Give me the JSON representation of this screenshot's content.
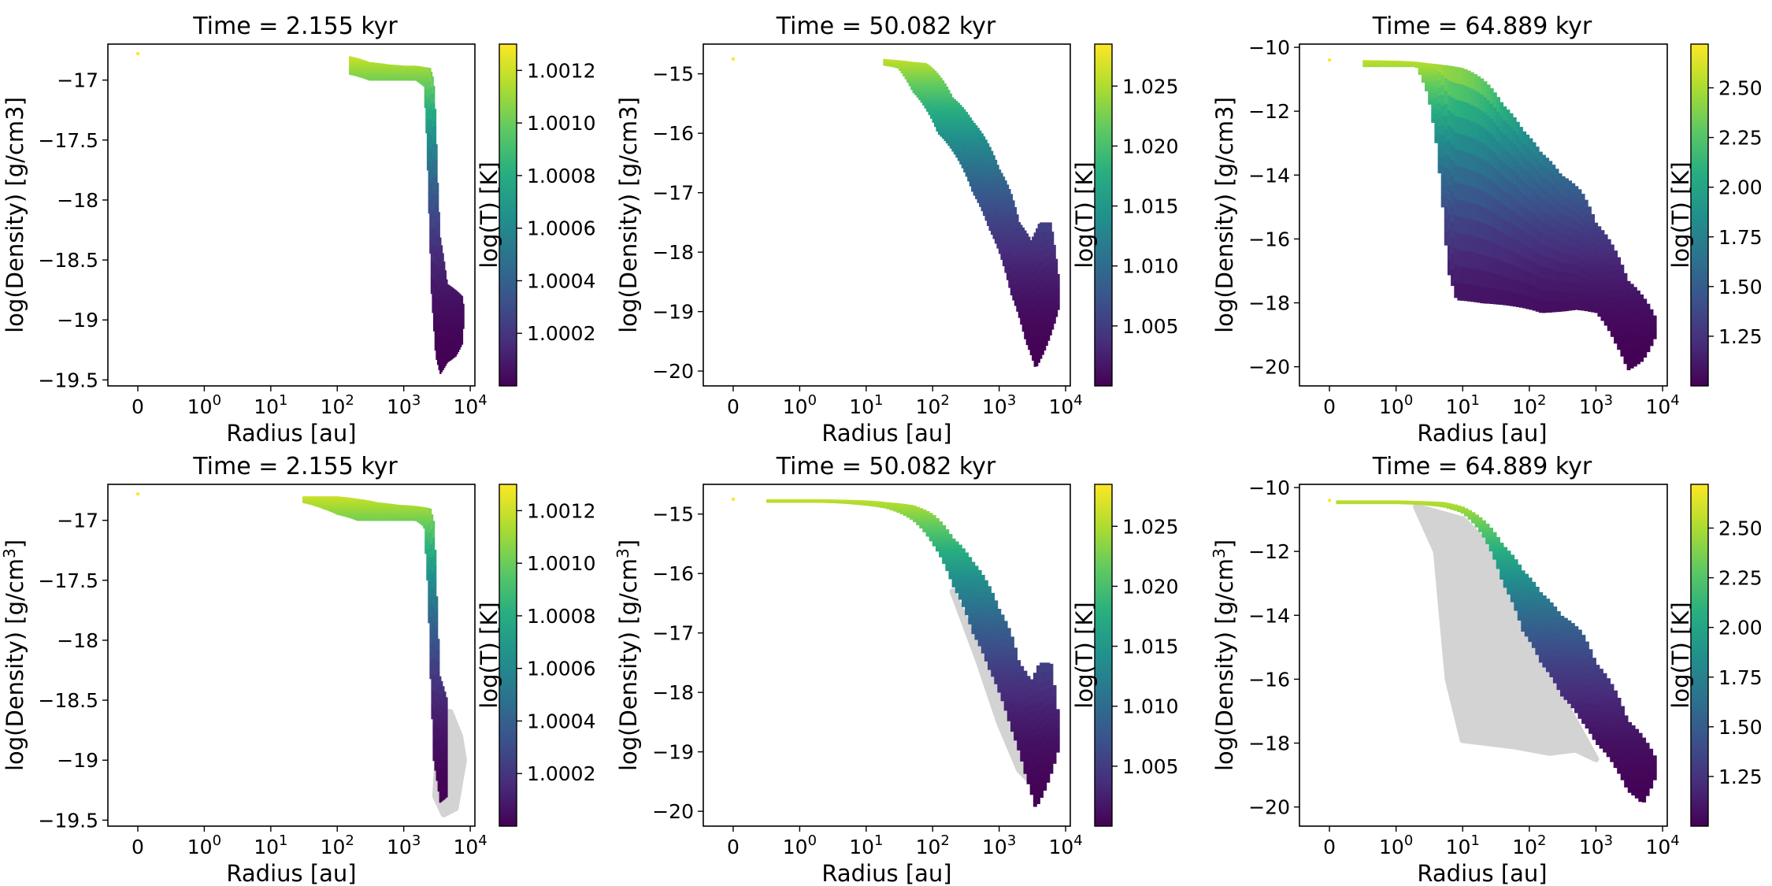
{
  "chart_data": [
    {
      "type": "scatter",
      "title": "Time = 2.155 kyr",
      "xlabel": "Radius [au]",
      "ylabel": "log(Density) [g/cm3]",
      "ylabel_html": null,
      "colorbar_label": "log(T) [K]",
      "xscale": "symlog",
      "xticks": [
        "0",
        "10^0",
        "10^1",
        "10^2",
        "10^3",
        "10^4"
      ],
      "ylim": [
        -19.55,
        -16.7
      ],
      "yticks": [
        -17.0,
        -17.5,
        -18.0,
        -18.5,
        -19.0,
        -19.5
      ],
      "clim": [
        1.0,
        1.0013
      ],
      "cticks": [
        1.0012,
        1.001,
        1.0008,
        1.0006,
        1.0004,
        1.0002
      ],
      "cticks_label": [
        "1.0012",
        "1.0010",
        "1.0008",
        "1.0006",
        "1.0004",
        "1.0002"
      ],
      "background_series": false,
      "series": [
        {
          "name": "center point",
          "x": [
            0
          ],
          "y": [
            -16.78
          ],
          "c": [
            1.00128
          ]
        },
        {
          "name": "upper envelope",
          "x": [
            150,
            300,
            600,
            1000,
            1500,
            2000,
            2500,
            2800,
            3000,
            3200,
            3500,
            4500,
            6000,
            7500,
            8000
          ],
          "y": [
            -16.8,
            -16.85,
            -16.87,
            -16.88,
            -16.88,
            -16.89,
            -16.9,
            -17.0,
            -17.3,
            -17.8,
            -18.3,
            -18.7,
            -18.75,
            -18.8,
            -18.9
          ]
        },
        {
          "name": "lower envelope",
          "x": [
            150,
            300,
            600,
            1000,
            1500,
            2000,
            2200,
            2400,
            2600,
            3000,
            3500,
            4500,
            6000,
            7500,
            8000
          ],
          "y": [
            -16.95,
            -17.0,
            -17.0,
            -17.0,
            -17.0,
            -17.05,
            -17.5,
            -18.2,
            -18.8,
            -19.3,
            -19.45,
            -19.35,
            -19.3,
            -19.2,
            -19.0
          ]
        }
      ]
    },
    {
      "type": "scatter",
      "title": "Time = 50.082 kyr",
      "xlabel": "Radius [au]",
      "ylabel": "log(Density) [g/cm3]",
      "colorbar_label": "log(T) [K]",
      "xscale": "symlog",
      "xticks": [
        "0",
        "10^0",
        "10^1",
        "10^2",
        "10^3",
        "10^4"
      ],
      "ylim": [
        -20.25,
        -14.5
      ],
      "yticks": [
        -15,
        -16,
        -17,
        -18,
        -19,
        -20
      ],
      "clim": [
        1.0,
        1.0285
      ],
      "cticks": [
        1.025,
        1.02,
        1.015,
        1.01,
        1.005
      ],
      "cticks_label": [
        "1.025",
        "1.020",
        "1.015",
        "1.010",
        "1.005"
      ],
      "background_series": false,
      "series": [
        {
          "name": "center point",
          "x": [
            0
          ],
          "y": [
            -14.75
          ],
          "c": [
            1.028
          ]
        },
        {
          "name": "upper envelope",
          "x": [
            18,
            30,
            50,
            80,
            120,
            200,
            400,
            700,
            1000,
            1500,
            2000,
            3000,
            4000,
            6000,
            8000
          ],
          "y": [
            -14.75,
            -14.77,
            -14.8,
            -14.82,
            -15.0,
            -15.4,
            -15.8,
            -16.2,
            -16.6,
            -17.0,
            -17.5,
            -17.8,
            -17.5,
            -17.5,
            -18.5
          ]
        },
        {
          "name": "lower envelope",
          "x": [
            18,
            30,
            50,
            80,
            120,
            200,
            400,
            700,
            1000,
            1500,
            2000,
            2500,
            3500,
            5000,
            8000
          ],
          "y": [
            -14.85,
            -14.9,
            -15.3,
            -15.6,
            -16.0,
            -16.3,
            -17.0,
            -17.6,
            -18.0,
            -18.7,
            -19.1,
            -19.5,
            -19.95,
            -19.6,
            -18.9
          ]
        }
      ]
    },
    {
      "type": "scatter",
      "title": "Time = 64.889 kyr",
      "xlabel": "Radius [au]",
      "ylabel": "log(Density) [g/cm3]",
      "colorbar_label": "log(T) [K]",
      "xscale": "symlog",
      "xticks": [
        "0",
        "10^0",
        "10^1",
        "10^2",
        "10^3",
        "10^4"
      ],
      "ylim": [
        -20.6,
        -9.9
      ],
      "yticks": [
        -10,
        -12,
        -14,
        -16,
        -18,
        -20
      ],
      "clim": [
        1.0,
        2.72
      ],
      "cticks": [
        2.5,
        2.25,
        2.0,
        1.75,
        1.5,
        1.25
      ],
      "cticks_label": [
        "2.50",
        "2.25",
        "2.00",
        "1.75",
        "1.50",
        "1.25"
      ],
      "background_series": false,
      "series": [
        {
          "name": "center point",
          "x": [
            0
          ],
          "y": [
            -10.4
          ],
          "c": [
            2.7
          ]
        },
        {
          "name": "upper envelope",
          "x": [
            0.5,
            1,
            2,
            3,
            5,
            10,
            20,
            40,
            80,
            150,
            300,
            600,
            1000,
            3000,
            8000
          ],
          "y": [
            -10.4,
            -10.42,
            -10.45,
            -10.5,
            -10.55,
            -10.65,
            -11.0,
            -11.8,
            -12.6,
            -13.3,
            -14.0,
            -14.5,
            -15.5,
            -17.3,
            -18.5
          ]
        },
        {
          "name": "lower envelope",
          "x": [
            2,
            3,
            4,
            5,
            6,
            8,
            20,
            60,
            150,
            500,
            1000,
            2000,
            3000,
            5000,
            8000
          ],
          "y": [
            -10.6,
            -11.5,
            -13.0,
            -15.0,
            -17.0,
            -17.9,
            -18.0,
            -18.1,
            -18.3,
            -18.2,
            -18.3,
            -19.3,
            -20.1,
            -19.8,
            -19.0
          ]
        }
      ]
    },
    {
      "type": "scatter",
      "title": "Time = 2.155 kyr",
      "xlabel": "Radius [au]",
      "ylabel": "log(Density) [g/cm",
      "ylabel_sup": "3",
      "ylabel_end": "]",
      "colorbar_label": "log(T) [K]",
      "xscale": "symlog",
      "xticks": [
        "0",
        "10^0",
        "10^1",
        "10^2",
        "10^3",
        "10^4"
      ],
      "ylim": [
        -19.55,
        -16.7
      ],
      "yticks": [
        -17.0,
        -17.5,
        -18.0,
        -18.5,
        -19.0,
        -19.5
      ],
      "clim": [
        1.0,
        1.0013
      ],
      "cticks": [
        1.0012,
        1.001,
        1.0008,
        1.0006,
        1.0004,
        1.0002
      ],
      "cticks_label": [
        "1.0012",
        "1.0010",
        "1.0008",
        "1.0006",
        "1.0004",
        "1.0002"
      ],
      "background_series": true,
      "series": [
        {
          "name": "center point",
          "x": [
            0
          ],
          "y": [
            -16.78
          ],
          "c": [
            1.00128
          ]
        },
        {
          "name": "upper envelope",
          "x": [
            30,
            60,
            100,
            200,
            400,
            800,
            1500,
            2500,
            2800,
            3000,
            3200,
            3500,
            4500
          ],
          "y": [
            -16.8,
            -16.8,
            -16.8,
            -16.82,
            -16.85,
            -16.87,
            -16.88,
            -16.9,
            -17.0,
            -17.3,
            -17.8,
            -18.3,
            -18.5
          ]
        },
        {
          "name": "lower envelope",
          "x": [
            30,
            60,
            100,
            200,
            400,
            800,
            1500,
            2000,
            2300,
            2500,
            2800,
            3500,
            4500
          ],
          "y": [
            -16.85,
            -16.9,
            -16.95,
            -17.0,
            -17.0,
            -17.0,
            -17.0,
            -17.05,
            -17.6,
            -18.3,
            -19.0,
            -19.35,
            -19.3
          ]
        },
        {
          "name": "background (grey)",
          "x": [
            3500,
            5000,
            7000,
            8000,
            6000,
            4000,
            3000
          ],
          "y": [
            -18.6,
            -18.6,
            -18.8,
            -19.0,
            -19.4,
            -19.45,
            -19.3
          ]
        }
      ]
    },
    {
      "type": "scatter",
      "title": "Time = 50.082 kyr",
      "xlabel": "Radius [au]",
      "ylabel": "log(Density) [g/cm",
      "ylabel_sup": "3",
      "ylabel_end": "]",
      "colorbar_label": "log(T) [K]",
      "xscale": "symlog",
      "xticks": [
        "0",
        "10^0",
        "10^1",
        "10^2",
        "10^3",
        "10^4"
      ],
      "ylim": [
        -20.25,
        -14.5
      ],
      "yticks": [
        -15,
        -16,
        -17,
        -18,
        -19,
        -20
      ],
      "clim": [
        1.0,
        1.0285
      ],
      "cticks": [
        1.025,
        1.02,
        1.015,
        1.01,
        1.005
      ],
      "cticks_label": [
        "1.025",
        "1.020",
        "1.015",
        "1.010",
        "1.005"
      ],
      "background_series": true,
      "series": [
        {
          "name": "center point",
          "x": [
            0
          ],
          "y": [
            -14.75
          ],
          "c": [
            1.028
          ]
        },
        {
          "name": "upper envelope",
          "x": [
            0.5,
            1,
            2,
            5,
            10,
            20,
            50,
            100,
            200,
            400,
            700,
            1000,
            1500,
            2000,
            3000,
            4000,
            6000,
            8000
          ],
          "y": [
            -14.75,
            -14.75,
            -14.75,
            -14.76,
            -14.77,
            -14.8,
            -14.85,
            -15.0,
            -15.4,
            -15.8,
            -16.2,
            -16.6,
            -17.0,
            -17.5,
            -17.8,
            -17.5,
            -17.5,
            -18.5
          ]
        },
        {
          "name": "lower envelope",
          "x": [
            0.5,
            1,
            2,
            5,
            10,
            20,
            50,
            100,
            200,
            400,
            700,
            1000,
            1500,
            2000,
            2500,
            3500,
            5000,
            8000
          ],
          "y": [
            -14.8,
            -14.8,
            -14.8,
            -14.82,
            -14.85,
            -14.9,
            -15.1,
            -15.5,
            -16.2,
            -17.0,
            -17.6,
            -18.0,
            -18.6,
            -19.0,
            -19.4,
            -19.95,
            -19.6,
            -18.9
          ]
        },
        {
          "name": "background (grey)",
          "x": [
            200,
            500,
            1000,
            2000,
            3000,
            2000,
            1000,
            500
          ],
          "y": [
            -16.3,
            -17.3,
            -18.0,
            -19.0,
            -19.5,
            -19.3,
            -18.5,
            -17.5
          ]
        }
      ]
    },
    {
      "type": "scatter",
      "title": "Time = 64.889 kyr",
      "xlabel": "Radius [au]",
      "ylabel": "log(Density) [g/cm",
      "ylabel_sup": "3",
      "ylabel_end": "]",
      "colorbar_label": "log(T) [K]",
      "xscale": "symlog",
      "xticks": [
        "0",
        "10^0",
        "10^1",
        "10^2",
        "10^3",
        "10^4"
      ],
      "ylim": [
        -20.6,
        -9.9
      ],
      "yticks": [
        -10,
        -12,
        -14,
        -16,
        -18,
        -20
      ],
      "clim": [
        1.0,
        2.72
      ],
      "cticks": [
        2.5,
        2.25,
        2.0,
        1.75,
        1.5,
        1.25
      ],
      "cticks_label": [
        "2.50",
        "2.25",
        "2.00",
        "1.75",
        "1.50",
        "1.25"
      ],
      "background_series": true,
      "series": [
        {
          "name": "center point",
          "x": [
            0
          ],
          "y": [
            -10.4
          ],
          "c": [
            2.7
          ]
        },
        {
          "name": "upper envelope",
          "x": [
            0.1,
            0.5,
            1,
            2,
            5,
            10,
            20,
            40,
            80,
            150,
            300,
            600,
            1000,
            3000,
            8000
          ],
          "y": [
            -10.4,
            -10.4,
            -10.4,
            -10.42,
            -10.45,
            -10.6,
            -11.0,
            -11.8,
            -12.6,
            -13.3,
            -14.0,
            -14.5,
            -15.5,
            -17.3,
            -18.5
          ]
        },
        {
          "name": "lower envelope",
          "x": [
            0.1,
            0.5,
            1,
            2,
            5,
            10,
            20,
            40,
            80,
            150,
            300,
            600,
            1000,
            2000,
            3000,
            5000,
            8000
          ],
          "y": [
            -10.5,
            -10.5,
            -10.5,
            -10.52,
            -10.6,
            -10.8,
            -11.5,
            -13.0,
            -14.5,
            -15.5,
            -16.5,
            -17.3,
            -18.0,
            -18.8,
            -19.5,
            -19.9,
            -19.0
          ]
        },
        {
          "name": "background (grey)",
          "x": [
            2,
            4,
            6,
            10,
            60,
            200,
            500,
            1000,
            400,
            100,
            30,
            10
          ],
          "y": [
            -10.6,
            -12.0,
            -16.0,
            -17.9,
            -18.1,
            -18.3,
            -18.2,
            -18.5,
            -17.0,
            -14.5,
            -12.0,
            -11.0
          ]
        }
      ]
    }
  ]
}
